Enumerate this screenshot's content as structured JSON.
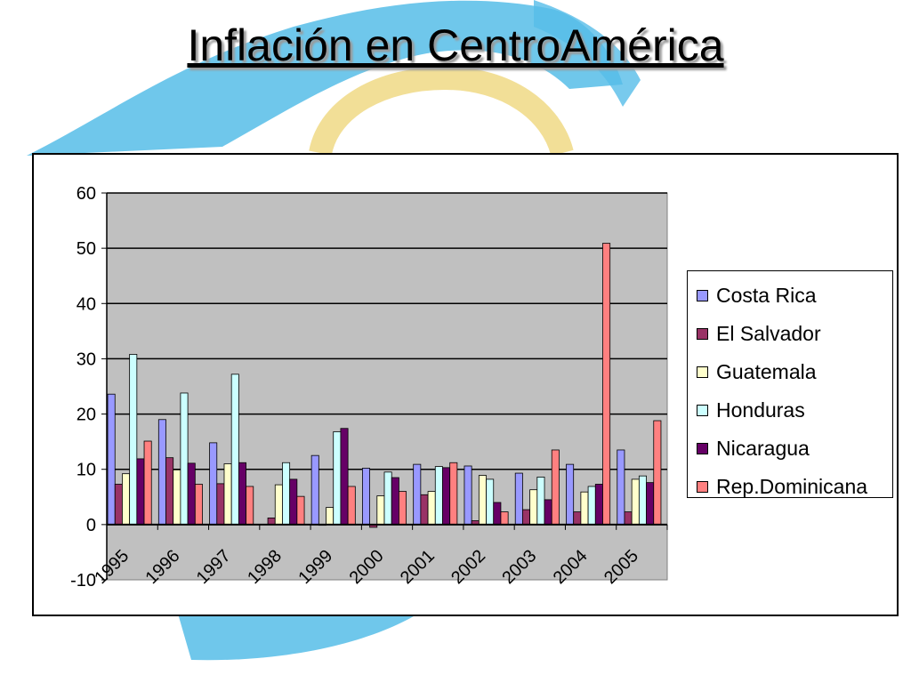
{
  "title": "Inflación en CentroAmérica",
  "colors": {
    "plot_background": "#c0c0c0",
    "gridline": "#000000",
    "decoration_blue": "#56bde8",
    "decoration_gold": "#f1dc8c"
  },
  "chart_data": {
    "type": "bar",
    "title": "",
    "xlabel": "",
    "ylabel": "",
    "categories": [
      "1995",
      "1996",
      "1997",
      "1998",
      "1999",
      "2000",
      "2001",
      "2002",
      "2003",
      "2004",
      "2005"
    ],
    "ylim": [
      -10,
      60
    ],
    "yticks": [
      "60",
      "50",
      "40",
      "30",
      "20",
      "10",
      "0",
      "-10"
    ],
    "grid": true,
    "legend_position": "right",
    "series": [
      {
        "name": "Costa Rica",
        "color": "#9999ff",
        "values": [
          23.6,
          19.0,
          14.8,
          null,
          12.5,
          10.2,
          10.9,
          10.6,
          9.3,
          10.9,
          13.5
        ]
      },
      {
        "name": "El Salvador",
        "color": "#993366",
        "values": [
          7.3,
          12.1,
          7.4,
          1.2,
          0.0,
          -0.5,
          5.4,
          0.7,
          2.7,
          2.3,
          2.3
        ]
      },
      {
        "name": "Guatemala",
        "color": "#ffffcc",
        "values": [
          9.2,
          9.9,
          11.0,
          7.2,
          3.1,
          5.2,
          6.0,
          8.9,
          6.3,
          5.9,
          8.2
        ]
      },
      {
        "name": "Honduras",
        "color": "#ccffff",
        "values": [
          30.8,
          23.8,
          27.2,
          11.2,
          16.8,
          9.5,
          10.5,
          8.2,
          8.6,
          6.9,
          8.8
        ]
      },
      {
        "name": "Nicaragua",
        "color": "#660066",
        "values": [
          11.9,
          11.1,
          11.2,
          8.2,
          17.4,
          8.5,
          10.3,
          4.0,
          4.5,
          7.3,
          7.6
        ]
      },
      {
        "name": "Rep.Dominicana",
        "color": "#ff8080",
        "values": [
          15.1,
          7.3,
          6.9,
          5.1,
          6.9,
          6.0,
          11.2,
          2.3,
          13.5,
          50.9,
          18.8
        ]
      }
    ]
  }
}
